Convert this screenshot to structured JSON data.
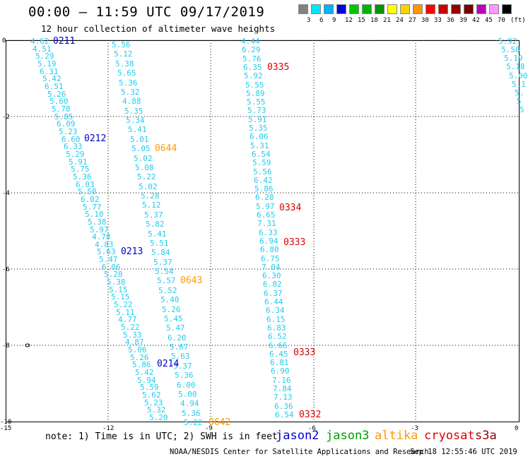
{
  "title": "00:00 – 11:59 UTC 09/17/2019",
  "subtitle": "12 hour collection of altimeter wave heights",
  "color_scale": {
    "colors": [
      "#808080",
      "#00e5ff",
      "#00b2ff",
      "#0000e0",
      "#00c800",
      "#00b400",
      "#009600",
      "#ffff00",
      "#ffd200",
      "#ff9600",
      "#ff0000",
      "#c80000",
      "#960000",
      "#780000",
      "#bf00bf",
      "#ff96ff",
      "#000000"
    ],
    "labels": [
      "3",
      "6",
      "9",
      "12",
      "15",
      "18",
      "21",
      "24",
      "27",
      "30",
      "33",
      "36",
      "39",
      "42",
      "45",
      "70",
      "(ft)"
    ]
  },
  "axes": {
    "y_labels": [
      "0",
      "-2",
      "-4",
      "-6",
      "-8",
      "-10"
    ],
    "x_labels": [
      "-15",
      "-12",
      "-9",
      "-6",
      "-3",
      "0"
    ]
  },
  "tracks": [
    {
      "values": [
        "4.62",
        "4.51",
        "5.29",
        "5.19",
        "6.31",
        "5.42",
        "6.51",
        "5.26",
        "5.60",
        "5.78",
        "5.85",
        "6.09",
        "5.23",
        "6.60",
        "6.33",
        "5.29",
        "5.91",
        "5.75",
        "5.36",
        "6.03",
        "5.50",
        "6.02",
        "5.77",
        "5.10",
        "5.38",
        "5.97",
        "4.78",
        "4.83",
        "5.63",
        "5.47",
        "6.06",
        "5.28",
        "5.38",
        "5.15",
        "5.15",
        "5.22",
        "5.11",
        "4.77",
        "5.22",
        "5.33",
        "4.87",
        "5.06",
        "5.26",
        "5.86",
        "5.42",
        "5.94",
        "5.59",
        "5.62",
        "5.23",
        "5.32",
        "5.20"
      ]
    },
    {
      "values": [
        "5.56",
        "5.12",
        "5.38",
        "5.65",
        "5.36",
        "5.32",
        "4.88",
        "5.35",
        "5.34",
        "5.41",
        "5.01",
        "5.05",
        "5.02",
        "5.08",
        "5.22",
        "5.02",
        "5.28",
        "5.12",
        "5.37",
        "5.82",
        "5.41",
        "5.51",
        "5.84",
        "5.37",
        "5.54",
        "5.57",
        "5.52",
        "5.40",
        "5.26",
        "5.45",
        "5.47",
        "6.20",
        "5.67",
        "5.63",
        "5.37",
        "5.36",
        "6.00",
        "5.00",
        "4.94",
        "5.36",
        "5.22"
      ]
    },
    {
      "values": [
        "4.44",
        "6.29",
        "5.76",
        "6.35",
        "5.92",
        "5.55",
        "5.89",
        "5.55",
        "5.73",
        "5.91",
        "5.35",
        "6.06",
        "5.31",
        "6.54",
        "5.59",
        "5.56",
        "6.42",
        "5.86",
        "6.28",
        "5.97",
        "6.65",
        "7.31",
        "6.33",
        "6.94",
        "6.80",
        "6.75",
        "7.04",
        "6.30",
        "6.82",
        "6.37",
        "6.44",
        "6.34",
        "6.15",
        "6.83",
        "6.52",
        "6.66",
        "6.45",
        "6.81",
        "6.90",
        "7.16",
        "7.84",
        "7.13",
        "6.36",
        "6.54"
      ]
    },
    {
      "values": [
        "5.92",
        "5.58",
        "5.19",
        "5.18",
        "5.00",
        "5.1",
        "5.",
        "5",
        "5"
      ]
    }
  ],
  "pass_labels": [
    {
      "text": "0211",
      "sat": "jason2"
    },
    {
      "text": "0212",
      "sat": "jason2"
    },
    {
      "text": "0213",
      "sat": "jason2"
    },
    {
      "text": "0214",
      "sat": "jason2"
    },
    {
      "text": "0644",
      "sat": "altika"
    },
    {
      "text": "0643",
      "sat": "altika"
    },
    {
      "text": "0642",
      "sat": "altika"
    },
    {
      "text": "0335",
      "sat": "cryosat"
    },
    {
      "text": "0334",
      "sat": "cryosat"
    },
    {
      "text": "0333",
      "sat": "cryosat"
    },
    {
      "text": "0333",
      "sat": "cryosat"
    },
    {
      "text": "0332",
      "sat": "cryosat"
    }
  ],
  "note": "note: 1) Time is in UTC; 2) SWH is in feet",
  "legend": [
    {
      "label": "jason2",
      "color": "#0000cc"
    },
    {
      "label": "jason3",
      "color": "#00a000"
    },
    {
      "label": "altika",
      "color": "#ff9900"
    },
    {
      "label": "cryosat",
      "color": "#dd0000"
    },
    {
      "label": "s3a",
      "color": "#990000"
    }
  ],
  "footer": "NOAA/NESDIS Center for Satellite Applications and Research",
  "timestamp": "Sep 18 12:55:46 UTC 2019"
}
